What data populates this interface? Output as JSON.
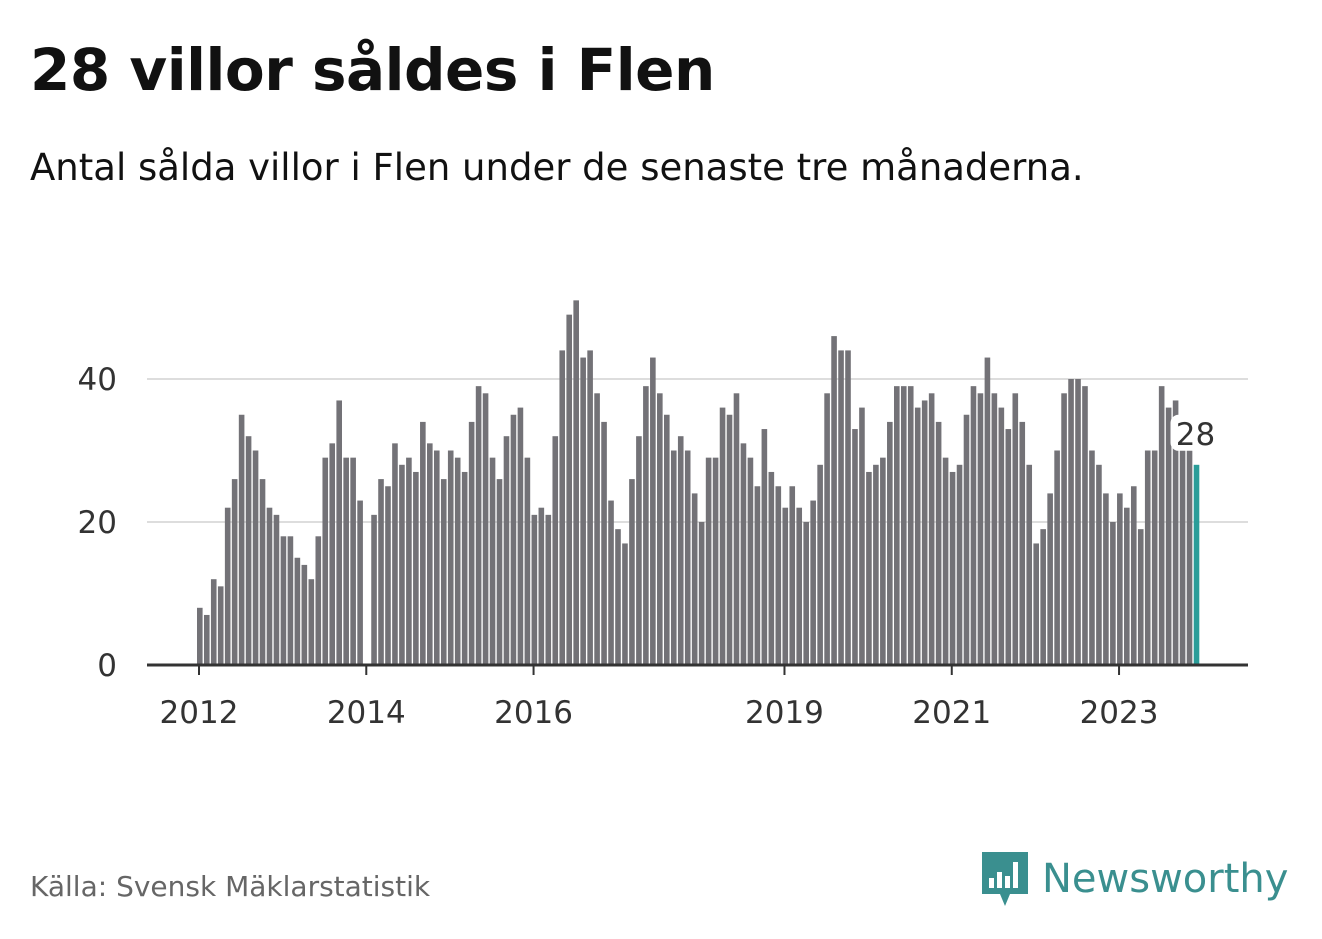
{
  "title": "28 villor såldes i Flen",
  "subtitle": "Antal sålda villor i Flen under de senaste tre månaderna.",
  "source": "Källa: Svensk Mäklarstatistik",
  "brand": "Newsworthy",
  "colors": {
    "bar": "#737277",
    "highlight": "#2a9d99",
    "grid": "#dddddd",
    "axis": "#333333",
    "brand": "#3a8f8f"
  },
  "chart_data": {
    "type": "bar",
    "title": "28 villor såldes i Flen",
    "ylim": [
      0,
      51
    ],
    "yticks": [
      0,
      20,
      40
    ],
    "xtick_labels": [
      "2012",
      "2014",
      "2016",
      "2019",
      "2021",
      "2023"
    ],
    "highlight_label": "28",
    "grid": true,
    "values": [
      8,
      7,
      12,
      11,
      22,
      26,
      35,
      32,
      30,
      26,
      22,
      21,
      18,
      18,
      15,
      14,
      12,
      18,
      29,
      31,
      37,
      29,
      29,
      23,
      0,
      21,
      26,
      25,
      31,
      28,
      29,
      27,
      34,
      31,
      30,
      26,
      30,
      29,
      27,
      34,
      39,
      38,
      29,
      26,
      32,
      35,
      36,
      29,
      21,
      22,
      21,
      32,
      44,
      49,
      51,
      43,
      44,
      38,
      34,
      23,
      19,
      17,
      26,
      32,
      39,
      43,
      38,
      35,
      30,
      32,
      30,
      24,
      20,
      29,
      29,
      36,
      35,
      38,
      31,
      29,
      25,
      33,
      27,
      25,
      22,
      25,
      22,
      20,
      23,
      28,
      38,
      46,
      44,
      44,
      33,
      36,
      27,
      28,
      29,
      34,
      39,
      39,
      39,
      36,
      37,
      38,
      34,
      29,
      27,
      28,
      35,
      39,
      38,
      43,
      38,
      36,
      33,
      38,
      34,
      28,
      17,
      19,
      24,
      30,
      38,
      40,
      40,
      39,
      30,
      28,
      24,
      20,
      24,
      22,
      25,
      19,
      30,
      30,
      39,
      36,
      37,
      30,
      30,
      28
    ]
  }
}
